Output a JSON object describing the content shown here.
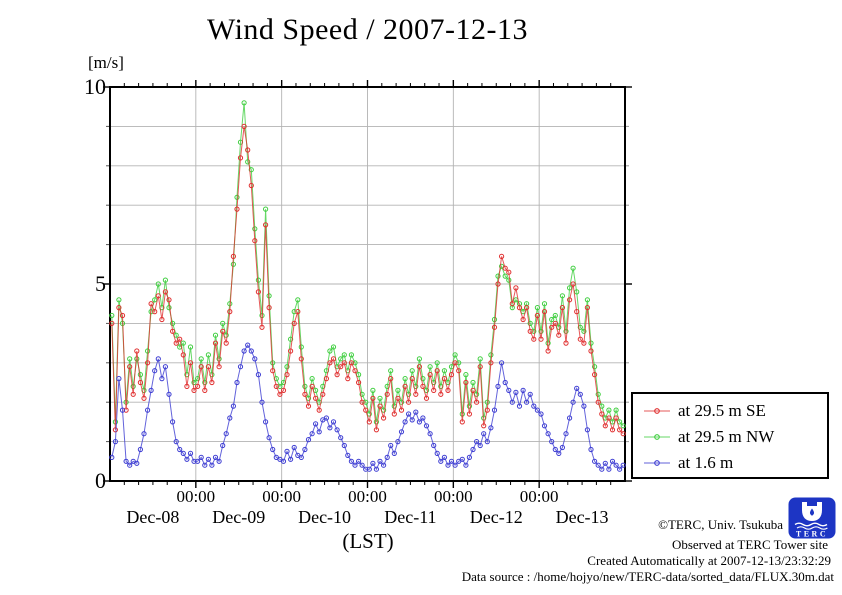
{
  "title": "Wind Speed / 2007-12-13",
  "y_axis": {
    "unit_label": "[m/s]",
    "tick_labels": [
      {
        "value": 10,
        "label": "10"
      },
      {
        "value": 5,
        "label": "5"
      },
      {
        "value": 0,
        "label": "0"
      }
    ]
  },
  "x_axis": {
    "axis_label": "(LST)",
    "time_tick_label": "00:00",
    "day_labels": [
      "Dec-08",
      "Dec-09",
      "Dec-10",
      "Dec-11",
      "Dec-12",
      "Dec-13"
    ]
  },
  "legend": {
    "items": [
      {
        "label": "at 29.5 m SE",
        "color": "#e02f2f"
      },
      {
        "label": "at 29.5 m NW",
        "color": "#3fce3f"
      },
      {
        "label": "at 1.6 m",
        "color": "#3c3cd2"
      }
    ]
  },
  "footer": {
    "copyright": "©TERC, Univ. Tsukuba",
    "observed": "Observed at TERC Tower site",
    "created": "Created Automatically at 2007-12-13/23:32:29",
    "datasource": "Data source : /home/hojyo/new/TERC-data/sorted_data/FLUX.30m.dat",
    "logo_text": "TERC"
  },
  "chart_data": {
    "type": "line",
    "title": "Wind Speed / 2007-12-13",
    "xlabel": "(LST)",
    "ylabel": "[m/s]",
    "ylim": [
      0,
      10
    ],
    "x_unit": "hours since 2007-12-08 00:00 LST",
    "x_step_hours": 1,
    "x_range_hours": [
      0,
      144
    ],
    "x_major_tick_hours": 24,
    "x_minor_tick_hours": 4,
    "y_grid_step": 1,
    "grid": true,
    "marker": "open-circle",
    "legend_position": "outside-right-bottom",
    "series": [
      {
        "name": "at 29.5 m SE",
        "color": "#e02f2f",
        "values": [
          4.0,
          1.3,
          4.4,
          4.2,
          1.8,
          2.9,
          2.2,
          3.3,
          2.5,
          2.1,
          3.0,
          4.5,
          4.3,
          4.7,
          4.1,
          4.8,
          4.6,
          3.8,
          3.5,
          3.6,
          3.2,
          2.4,
          3.0,
          2.3,
          2.4,
          2.9,
          2.3,
          2.9,
          2.5,
          3.5,
          2.9,
          3.8,
          3.5,
          4.3,
          5.7,
          6.9,
          8.2,
          9.0,
          8.4,
          7.5,
          6.1,
          4.8,
          3.9,
          6.5,
          4.4,
          2.8,
          2.4,
          2.2,
          2.3,
          2.7,
          3.3,
          4.0,
          4.3,
          3.1,
          2.2,
          1.9,
          2.4,
          2.1,
          1.8,
          2.2,
          2.6,
          3.0,
          3.1,
          2.7,
          2.9,
          3.0,
          2.6,
          3.0,
          2.8,
          2.5,
          2.0,
          1.8,
          1.5,
          2.1,
          1.3,
          1.9,
          1.6,
          2.2,
          2.6,
          1.7,
          2.1,
          1.8,
          2.4,
          2.0,
          2.6,
          2.2,
          2.9,
          2.4,
          2.1,
          2.7,
          2.3,
          2.8,
          2.2,
          2.6,
          2.3,
          2.7,
          3.0,
          2.8,
          1.5,
          2.5,
          1.7,
          2.3,
          2.0,
          2.9,
          1.4,
          1.8,
          3.0,
          3.9,
          5.0,
          5.7,
          5.4,
          5.3,
          4.5,
          4.9,
          4.4,
          4.1,
          4.4,
          3.8,
          3.6,
          4.2,
          3.6,
          4.3,
          3.3,
          3.9,
          4.0,
          3.7,
          4.4,
          3.5,
          4.6,
          5.0,
          4.3,
          3.6,
          3.5,
          4.4,
          3.3,
          2.7,
          2.0,
          1.7,
          1.4,
          1.6,
          1.3,
          1.6,
          1.3,
          1.2
        ]
      },
      {
        "name": "at 29.5 m NW",
        "color": "#3fce3f",
        "values": [
          4.2,
          1.5,
          4.6,
          4.0,
          2.0,
          3.1,
          2.4,
          3.1,
          2.7,
          2.3,
          3.3,
          4.3,
          4.6,
          5.0,
          4.4,
          5.1,
          4.4,
          4.0,
          3.7,
          3.4,
          3.5,
          2.7,
          3.4,
          2.5,
          2.6,
          3.1,
          2.5,
          3.2,
          2.7,
          3.7,
          3.1,
          4.0,
          3.7,
          4.5,
          5.5,
          7.2,
          8.6,
          9.6,
          8.1,
          7.9,
          6.4,
          5.1,
          4.2,
          6.9,
          4.7,
          3.0,
          2.6,
          2.4,
          2.5,
          2.9,
          3.6,
          4.3,
          4.6,
          3.4,
          2.4,
          2.1,
          2.6,
          2.3,
          2.0,
          2.4,
          2.8,
          3.3,
          3.4,
          2.9,
          3.1,
          3.2,
          2.8,
          3.2,
          3.0,
          2.7,
          2.2,
          2.0,
          1.7,
          2.3,
          1.5,
          2.1,
          1.8,
          2.4,
          2.8,
          1.9,
          2.3,
          2.0,
          2.6,
          2.2,
          2.8,
          2.4,
          3.1,
          2.6,
          2.3,
          2.9,
          2.5,
          3.0,
          2.4,
          2.8,
          2.5,
          2.9,
          3.2,
          3.0,
          1.7,
          2.7,
          1.9,
          2.5,
          2.2,
          3.1,
          1.6,
          2.0,
          3.2,
          4.1,
          5.2,
          5.45,
          5.2,
          5.1,
          4.4,
          4.6,
          4.5,
          4.3,
          4.5,
          4.0,
          3.8,
          4.4,
          3.8,
          4.5,
          3.5,
          4.1,
          4.2,
          3.9,
          4.7,
          3.8,
          4.9,
          5.4,
          4.8,
          3.9,
          3.8,
          4.6,
          3.5,
          2.9,
          2.2,
          1.9,
          1.6,
          1.8,
          1.5,
          1.8,
          1.5,
          1.4
        ]
      },
      {
        "name": "at 1.6 m",
        "color": "#3c3cd2",
        "values": [
          0.6,
          1.0,
          2.6,
          1.8,
          0.5,
          0.4,
          0.5,
          0.45,
          0.8,
          1.2,
          1.8,
          2.3,
          2.8,
          3.1,
          2.6,
          2.9,
          2.2,
          1.5,
          1.0,
          0.8,
          0.7,
          0.55,
          0.7,
          0.5,
          0.5,
          0.6,
          0.4,
          0.55,
          0.4,
          0.6,
          0.5,
          0.9,
          1.2,
          1.6,
          1.9,
          2.5,
          2.9,
          3.3,
          3.45,
          3.3,
          3.1,
          2.7,
          2.0,
          1.5,
          1.1,
          0.8,
          0.6,
          0.55,
          0.5,
          0.75,
          0.55,
          0.85,
          0.65,
          0.6,
          0.8,
          1.05,
          1.2,
          1.45,
          1.25,
          1.55,
          1.6,
          1.35,
          1.5,
          1.3,
          1.1,
          0.9,
          0.65,
          0.5,
          0.4,
          0.5,
          0.4,
          0.3,
          0.3,
          0.45,
          0.3,
          0.5,
          0.4,
          0.6,
          0.9,
          0.7,
          1.0,
          1.25,
          1.5,
          1.7,
          1.55,
          1.75,
          1.5,
          1.6,
          1.4,
          1.2,
          0.9,
          0.7,
          0.5,
          0.6,
          0.4,
          0.5,
          0.4,
          0.5,
          0.55,
          0.4,
          0.6,
          0.8,
          1.0,
          0.9,
          1.2,
          1.0,
          1.35,
          1.8,
          2.4,
          3.0,
          2.5,
          2.3,
          2.0,
          2.25,
          1.9,
          2.3,
          2.0,
          2.2,
          1.9,
          1.8,
          1.7,
          1.4,
          1.2,
          1.0,
          0.8,
          0.7,
          0.85,
          1.2,
          1.6,
          2.0,
          2.35,
          2.2,
          1.9,
          1.3,
          0.8,
          0.5,
          0.4,
          0.3,
          0.45,
          0.3,
          0.5,
          0.4,
          0.3,
          0.4
        ]
      }
    ]
  }
}
